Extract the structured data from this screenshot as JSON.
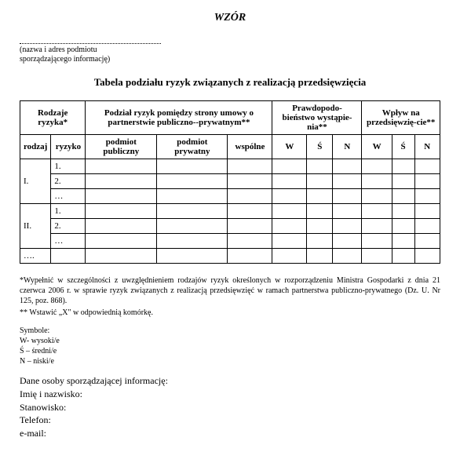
{
  "header": {
    "title": "WZÓR"
  },
  "entity_note": {
    "line1": "(nazwa i adres podmiotu",
    "line2": "sporządzającego informację)"
  },
  "main_title": "Tabela podziału ryzyk związanych z realizacją przedsięwzięcia",
  "table": {
    "h_rodzaje": "Rodzaje ryzyka*",
    "h_podzial": "Podział ryzyk pomiędzy strony umowy o partnerstwie publiczno--prywatnym**",
    "h_prawdo": "Prawdopodo-bieństwo wystąpie-nia**",
    "h_wplyw": "Wpływ na przedsięwzię-cie**",
    "sh_rodzaj": "rodzaj",
    "sh_ryzyko": "ryzyko",
    "sh_publiczny": "podmiot publiczny",
    "sh_prywatny": "podmiot prywatny",
    "sh_wspolne": "wspólne",
    "sh_w": "W",
    "sh_s": "Ś",
    "sh_n": "N",
    "rows": {
      "r1": "I.",
      "r1_1": "1.",
      "r1_2": "2.",
      "r1_3": "…",
      "r2": "II.",
      "r2_1": "1.",
      "r2_2": "2.",
      "r2_3": "…",
      "r3": "…."
    }
  },
  "footnotes": {
    "f1": "*Wypełnić w szczególności z uwzględnieniem rodzajów ryzyk określonych w rozporządzeniu Ministra Gospodarki z dnia 21 czerwca 2006 r. w sprawie ryzyk związanych z realizacją przedsięwzięć w ramach partnerstwa publiczno-prywatnego (Dz. U. Nr 125, poz. 868).",
    "f2": "** Wstawić „X\" w odpowiednią komórkę."
  },
  "symbols": {
    "title": "Symbole:",
    "w": "W- wysoki/e",
    "s": "Ś – średni/e",
    "n": "N – niski/e"
  },
  "person": {
    "title": "Dane osoby sporządzającej informację:",
    "name": "Imię i nazwisko:",
    "position": "Stanowisko:",
    "phone": "Telefon:",
    "email": "e-mail:"
  }
}
